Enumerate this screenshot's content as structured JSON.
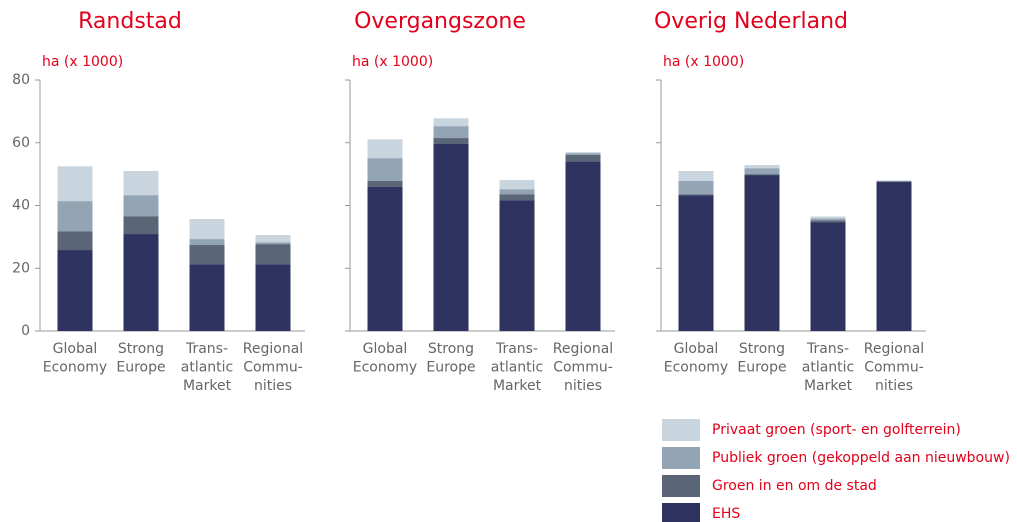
{
  "chart_data": [
    {
      "type": "bar",
      "stacked": true,
      "title": "Randstad",
      "y_label": "ha (x 1000)",
      "categories": [
        [
          "Global",
          "Economy"
        ],
        [
          "Strong",
          "Europe"
        ],
        [
          "Trans-",
          "atlantic",
          "Market"
        ],
        [
          "Regional",
          "Commu-",
          "nities"
        ]
      ],
      "ylim": [
        0,
        80
      ],
      "yticks": [
        0,
        20,
        40,
        60,
        80
      ],
      "series": [
        {
          "values": [
            25.8,
            30.9,
            21.3,
            21.3
          ]
        },
        {
          "values": [
            6,
            5.7,
            6.1,
            6.4
          ]
        },
        {
          "values": [
            9.6,
            6.7,
            1.9,
            0.6
          ]
        },
        {
          "values": [
            11.1,
            7.7,
            6.4,
            2.3
          ]
        }
      ]
    },
    {
      "type": "bar",
      "stacked": true,
      "title": "Overgangszone",
      "y_label": "ha (x 1000)",
      "categories": [
        [
          "Global",
          "Economy"
        ],
        [
          "Strong",
          "Europe"
        ],
        [
          "Trans-",
          "atlantic",
          "Market"
        ],
        [
          "Regional",
          "Commu-",
          "nities"
        ]
      ],
      "ylim": [
        0,
        80
      ],
      "series": [
        {
          "values": [
            45.9,
            59.6,
            41.7,
            54.1
          ]
        },
        {
          "values": [
            1.9,
            1.9,
            1.9,
            2
          ]
        },
        {
          "values": [
            7.3,
            3.8,
            1.6,
            0.6
          ]
        },
        {
          "values": [
            6,
            2.5,
            2.9,
            0.3
          ]
        }
      ]
    },
    {
      "type": "bar",
      "stacked": true,
      "title": "Overig Nederland",
      "y_label": "ha (x 1000)",
      "categories": [
        [
          "Global",
          "Economy"
        ],
        [
          "Strong",
          "Europe"
        ],
        [
          "Trans-",
          "atlantic",
          "Market"
        ],
        [
          "Regional",
          "Commu-",
          "nities"
        ]
      ],
      "ylim": [
        0,
        80
      ],
      "series": [
        {
          "values": [
            43.3,
            49.7,
            34.7,
            47.5
          ]
        },
        {
          "values": [
            0.3,
            0.3,
            0.6,
            0.2
          ]
        },
        {
          "values": [
            4.2,
            1.9,
            0.6,
            0.2
          ]
        },
        {
          "values": [
            3.2,
            1,
            0.6,
            0.1
          ]
        }
      ]
    }
  ],
  "legend": [
    {
      "name": "EHS",
      "color": "#2e3360"
    },
    {
      "name": "Groen in en om de stad",
      "color": "#5a6678"
    },
    {
      "name": "Publiek groen (gekoppeld aan nieuwbouw)",
      "color": "#93a5b5"
    },
    {
      "name": "Privaat groen (sport- en golfterrein)",
      "color": "#c9d5de"
    }
  ]
}
